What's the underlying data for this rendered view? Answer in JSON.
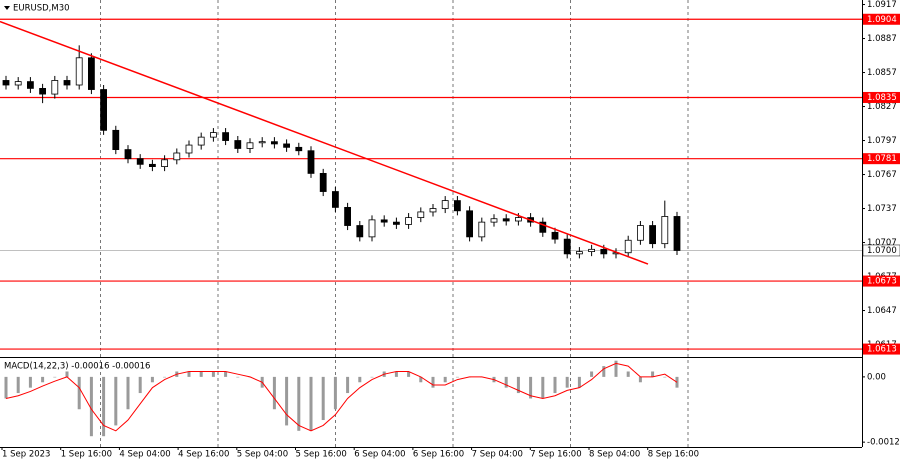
{
  "chart_data": [
    {
      "type": "candlestick",
      "title": "EURUSD,M30",
      "open": [
        1.085,
        1.0846,
        1.0849,
        1.0843,
        1.0838,
        1.085,
        1.0846,
        1.087,
        1.0842,
        1.0806,
        1.0789,
        1.0781,
        1.0776,
        1.0774,
        1.078,
        1.0786,
        1.0793,
        1.08,
        1.0804,
        1.0797,
        1.079,
        1.0795,
        1.0796,
        1.0794,
        1.0791,
        1.0788,
        1.0768,
        1.0752,
        1.0738,
        1.0722,
        1.0712,
        1.0727,
        1.0725,
        1.0723,
        1.0729,
        1.0734,
        1.0737,
        1.0744,
        1.0735,
        1.0712,
        1.0725,
        1.0728,
        1.0726,
        1.0729,
        1.0725,
        1.0716,
        1.071,
        1.0697,
        1.0699,
        1.0701,
        1.0697,
        1.0698,
        1.0709,
        1.0722,
        1.0706,
        1.073
      ],
      "high": [
        1.0854,
        1.0853,
        1.0853,
        1.0847,
        1.0854,
        1.0854,
        1.0881,
        1.0874,
        1.0846,
        1.081,
        1.0793,
        1.0785,
        1.078,
        1.0784,
        1.079,
        1.0797,
        1.0804,
        1.0808,
        1.0808,
        1.0801,
        1.0799,
        1.08,
        1.08,
        1.0798,
        1.0795,
        1.0792,
        1.0772,
        1.0756,
        1.0742,
        1.0726,
        1.0731,
        1.0731,
        1.0729,
        1.0733,
        1.0738,
        1.0741,
        1.0748,
        1.0748,
        1.0739,
        1.0729,
        1.0732,
        1.0732,
        1.0733,
        1.0733,
        1.0729,
        1.072,
        1.0714,
        1.0703,
        1.0705,
        1.0705,
        1.0702,
        1.0713,
        1.0726,
        1.0726,
        1.0744,
        1.0734
      ],
      "low": [
        1.0842,
        1.0842,
        1.0839,
        1.083,
        1.0834,
        1.0842,
        1.0842,
        1.0838,
        1.0802,
        1.0785,
        1.0777,
        1.0772,
        1.077,
        1.077,
        1.0776,
        1.0782,
        1.0789,
        1.0796,
        1.0793,
        1.0786,
        1.0786,
        1.0791,
        1.079,
        1.0787,
        1.0784,
        1.0764,
        1.0748,
        1.0734,
        1.0718,
        1.0708,
        1.0708,
        1.0721,
        1.0719,
        1.0719,
        1.0725,
        1.073,
        1.0733,
        1.0731,
        1.0708,
        1.0708,
        1.0721,
        1.0722,
        1.0722,
        1.0721,
        1.0712,
        1.0706,
        1.0693,
        1.0693,
        1.0695,
        1.0693,
        1.0693,
        1.0694,
        1.0705,
        1.0702,
        1.0702,
        1.0696
      ],
      "close": [
        1.0846,
        1.0849,
        1.0843,
        1.0838,
        1.085,
        1.0846,
        1.087,
        1.0842,
        1.0806,
        1.0789,
        1.0781,
        1.0776,
        1.0774,
        1.078,
        1.0786,
        1.0793,
        1.08,
        1.0804,
        1.0797,
        1.079,
        1.0795,
        1.0796,
        1.0794,
        1.0791,
        1.0788,
        1.0768,
        1.0752,
        1.0738,
        1.0722,
        1.0712,
        1.0727,
        1.0725,
        1.0723,
        1.0729,
        1.0734,
        1.0737,
        1.0744,
        1.0735,
        1.0712,
        1.0725,
        1.0728,
        1.0726,
        1.0729,
        1.0725,
        1.0716,
        1.071,
        1.0697,
        1.0699,
        1.0701,
        1.0697,
        1.0698,
        1.0709,
        1.0722,
        1.0706,
        1.073,
        1.07
      ],
      "ylim": [
        1.0606,
        1.0921
      ],
      "yticks": [
        1.0917,
        1.0887,
        1.0857,
        1.0827,
        1.0797,
        1.0767,
        1.0737,
        1.0707,
        1.0677,
        1.0647,
        1.0617
      ],
      "levels": {
        "values": [
          1.0904,
          1.0835,
          1.0781,
          1.0673,
          1.0613
        ],
        "color": "#ff0000"
      },
      "current_price": {
        "value": 1.07,
        "label": "1.0700"
      },
      "trendline": {
        "values": [
          1.0902,
          1.0688
        ],
        "color": "#ff0000"
      },
      "x_labels": [
        "1 Sep 2023",
        "1 Sep 16:00",
        "4 Sep 04:00",
        "4 Sep 16:00",
        "5 Sep 04:00",
        "5 Sep 16:00",
        "6 Sep 04:00",
        "6 Sep 16:00",
        "7 Sep 04:00",
        "7 Sep 16:00",
        "8 Sep 04:00",
        "8 Sep 16:00"
      ]
    },
    {
      "type": "macd",
      "title": "MACD(14,22,3) -0.00016 -0.00016",
      "values": [
        -0.0004,
        -0.0003,
        -0.0002,
        -0.0001,
        0.0,
        0.0001,
        -0.0006,
        -0.0011,
        -0.0011,
        -0.0009,
        -0.0006,
        -0.0003,
        -0.0001,
        0.0,
        0.0001,
        0.0001,
        0.0001,
        0.0001,
        0.0001,
        0.0,
        0.0,
        -0.0002,
        -0.0006,
        -0.0009,
        -0.001,
        -0.001,
        -0.0008,
        -0.0006,
        -0.0003,
        -0.0001,
        0.0,
        0.0001,
        0.0001,
        0.0001,
        -0.0001,
        -0.0002,
        -0.0001,
        0.0,
        0.0,
        0.0,
        -0.0001,
        -0.0002,
        -0.0003,
        -0.0004,
        -0.0004,
        -0.0003,
        -0.0002,
        -0.0002,
        0.0001,
        0.0002,
        0.0003,
        0.0001,
        -0.0001,
        0.0001,
        0.0,
        -0.0002
      ],
      "signal": [
        -0.0004,
        -0.00035,
        -0.00027,
        -0.00017,
        -8e-05,
        0.0,
        -0.0002,
        -0.0006,
        -0.0009,
        -0.001,
        -0.0008,
        -0.0005,
        -0.0002,
        -5e-05,
        5e-05,
        0.0001,
        0.0001,
        0.0001,
        0.0001,
        5e-05,
        0.0,
        -0.0001,
        -0.0004,
        -0.0007,
        -0.0009,
        -0.001,
        -0.0009,
        -0.0007,
        -0.0004,
        -0.0002,
        -5e-05,
        5e-05,
        0.0001,
        0.0001,
        0.0,
        -0.00015,
        -0.00015,
        -5e-05,
        0.0,
        0.0,
        -5e-05,
        -0.00015,
        -0.00025,
        -0.00035,
        -0.0004,
        -0.00035,
        -0.00025,
        -0.0002,
        -5e-05,
        0.00015,
        0.00025,
        0.0002,
        0.0,
        0.0,
        5e-05,
        -0.0001
      ],
      "hist_color": "#9a9a9a",
      "signal_color": "#ff0000",
      "ylim": [
        -0.0013,
        0.00035
      ],
      "yticks": [
        {
          "value": 0,
          "label": "0.00"
        },
        -0.00121
      ]
    }
  ]
}
